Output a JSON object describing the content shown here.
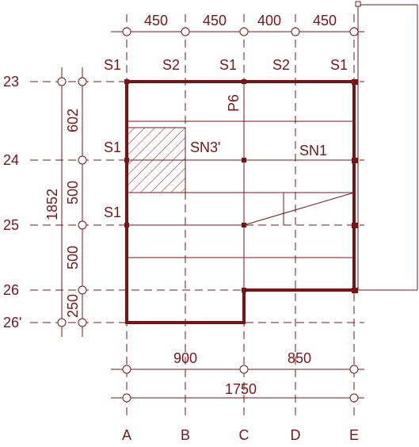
{
  "colors": {
    "line": "#7a1414",
    "background": "#ffffff"
  },
  "top_dimensions": [
    "450",
    "450",
    "400",
    "450"
  ],
  "support_labels": {
    "top": [
      "S1",
      "S2",
      "S1",
      "S2",
      "S1"
    ],
    "left": [
      "S1",
      "S1"
    ]
  },
  "row_labels": [
    "23",
    "24",
    "25",
    "26",
    "26'"
  ],
  "column_labels": [
    "A",
    "B",
    "C",
    "D",
    "E"
  ],
  "left_dimensions": {
    "segments": [
      "602",
      "500",
      "500",
      "250"
    ],
    "total": "1852"
  },
  "bottom_dimensions": {
    "segments": [
      "900",
      "850"
    ],
    "total": "1750"
  },
  "element_labels": {
    "p6": "P6",
    "sn3": "SN3'",
    "sn1": "SN1"
  }
}
